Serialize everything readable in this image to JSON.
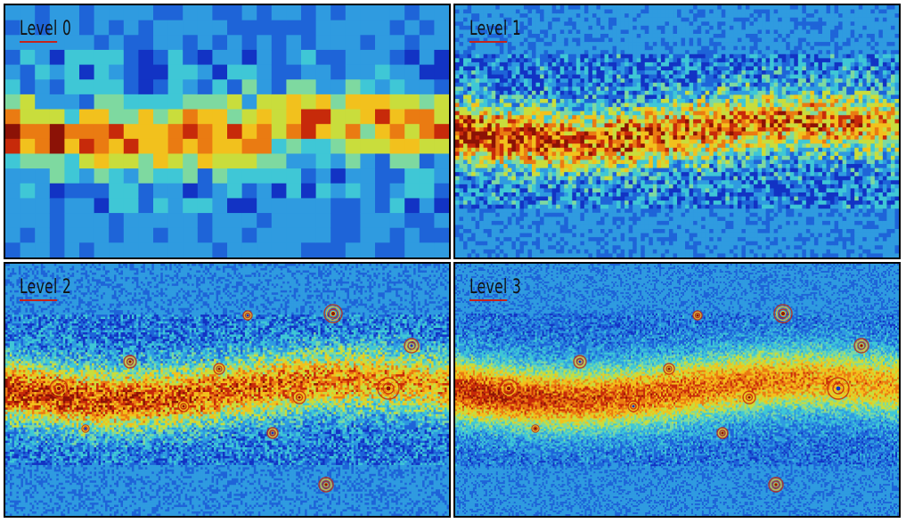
{
  "panels": [
    {
      "id": "p0",
      "label": "Level 0"
    },
    {
      "id": "p1",
      "label": "Level 1"
    },
    {
      "id": "p2",
      "label": "Level 2"
    },
    {
      "id": "p3",
      "label": "Level 3"
    }
  ],
  "colormap": [
    "#1233c4",
    "#1e64d8",
    "#2f9be0",
    "#3fc7d6",
    "#7ed9a0",
    "#c9dd3c",
    "#f2c11d",
    "#ea7b12",
    "#c72a0a",
    "#8c1206"
  ]
}
